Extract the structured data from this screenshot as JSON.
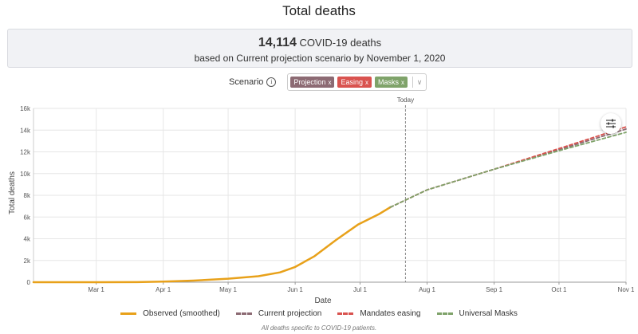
{
  "page_title": "Total deaths",
  "summary": {
    "count": "14,114",
    "count_suffix": "COVID-19 deaths",
    "line2": "based on Current projection scenario by November 1, 2020"
  },
  "scenario": {
    "label": "Scenario",
    "chips": [
      {
        "label": "Projection",
        "remove": "x",
        "color": "#8c6a73"
      },
      {
        "label": "Easing",
        "remove": "x",
        "color": "#d9534f"
      },
      {
        "label": "Masks",
        "remove": "x",
        "color": "#7fa36a"
      }
    ],
    "chevron": "∨"
  },
  "settings_icon": "sliders-icon",
  "footnote": "All deaths specific to COVID-19 patients.",
  "chart_data": {
    "type": "line",
    "title": "Total deaths",
    "xlabel": "Date",
    "ylabel": "Total deaths",
    "x_range": [
      "2020-02-01",
      "2020-11-01"
    ],
    "ylim": [
      0,
      16000
    ],
    "y_ticks": [
      "0",
      "2k",
      "4k",
      "6k",
      "8k",
      "10k",
      "12k",
      "14k",
      "16k"
    ],
    "x_ticks": [
      {
        "label": "Mar 1",
        "date": "2020-03-01"
      },
      {
        "label": "Apr 1",
        "date": "2020-04-01"
      },
      {
        "label": "May 1",
        "date": "2020-05-01"
      },
      {
        "label": "Jun 1",
        "date": "2020-06-01"
      },
      {
        "label": "Jul 1",
        "date": "2020-07-01"
      },
      {
        "label": "Aug 1",
        "date": "2020-08-01"
      },
      {
        "label": "Sep 1",
        "date": "2020-09-01"
      },
      {
        "label": "Oct 1",
        "date": "2020-10-01"
      },
      {
        "label": "Nov 1",
        "date": "2020-11-01"
      }
    ],
    "today": {
      "label": "Today",
      "date": "2020-07-22"
    },
    "grid": true,
    "legend_position": "bottom",
    "series": [
      {
        "name": "Observed (smoothed)",
        "style": "solid",
        "color": "#e8a11a",
        "points": [
          [
            "2020-02-01",
            0
          ],
          [
            "2020-03-01",
            0
          ],
          [
            "2020-03-20",
            10
          ],
          [
            "2020-04-01",
            50
          ],
          [
            "2020-04-15",
            150
          ],
          [
            "2020-05-01",
            320
          ],
          [
            "2020-05-15",
            550
          ],
          [
            "2020-05-25",
            900
          ],
          [
            "2020-06-01",
            1400
          ],
          [
            "2020-06-10",
            2400
          ],
          [
            "2020-06-20",
            3900
          ],
          [
            "2020-06-30",
            5300
          ],
          [
            "2020-07-10",
            6300
          ],
          [
            "2020-07-15",
            6900
          ]
        ]
      },
      {
        "name": "Current projection",
        "style": "dashed",
        "color": "#8c6a73",
        "points": [
          [
            "2020-07-15",
            6900
          ],
          [
            "2020-08-01",
            8500
          ],
          [
            "2020-09-01",
            10400
          ],
          [
            "2020-10-01",
            12200
          ],
          [
            "2020-11-01",
            14100
          ]
        ]
      },
      {
        "name": "Mandates easing",
        "style": "dashed",
        "color": "#d9534f",
        "points": [
          [
            "2020-07-15",
            6900
          ],
          [
            "2020-08-01",
            8500
          ],
          [
            "2020-09-01",
            10400
          ],
          [
            "2020-10-01",
            12300
          ],
          [
            "2020-11-01",
            14300
          ]
        ]
      },
      {
        "name": "Universal Masks",
        "style": "dashed",
        "color": "#7fa36a",
        "points": [
          [
            "2020-07-15",
            6900
          ],
          [
            "2020-08-01",
            8500
          ],
          [
            "2020-09-01",
            10400
          ],
          [
            "2020-10-01",
            12100
          ],
          [
            "2020-11-01",
            13800
          ]
        ]
      }
    ]
  }
}
